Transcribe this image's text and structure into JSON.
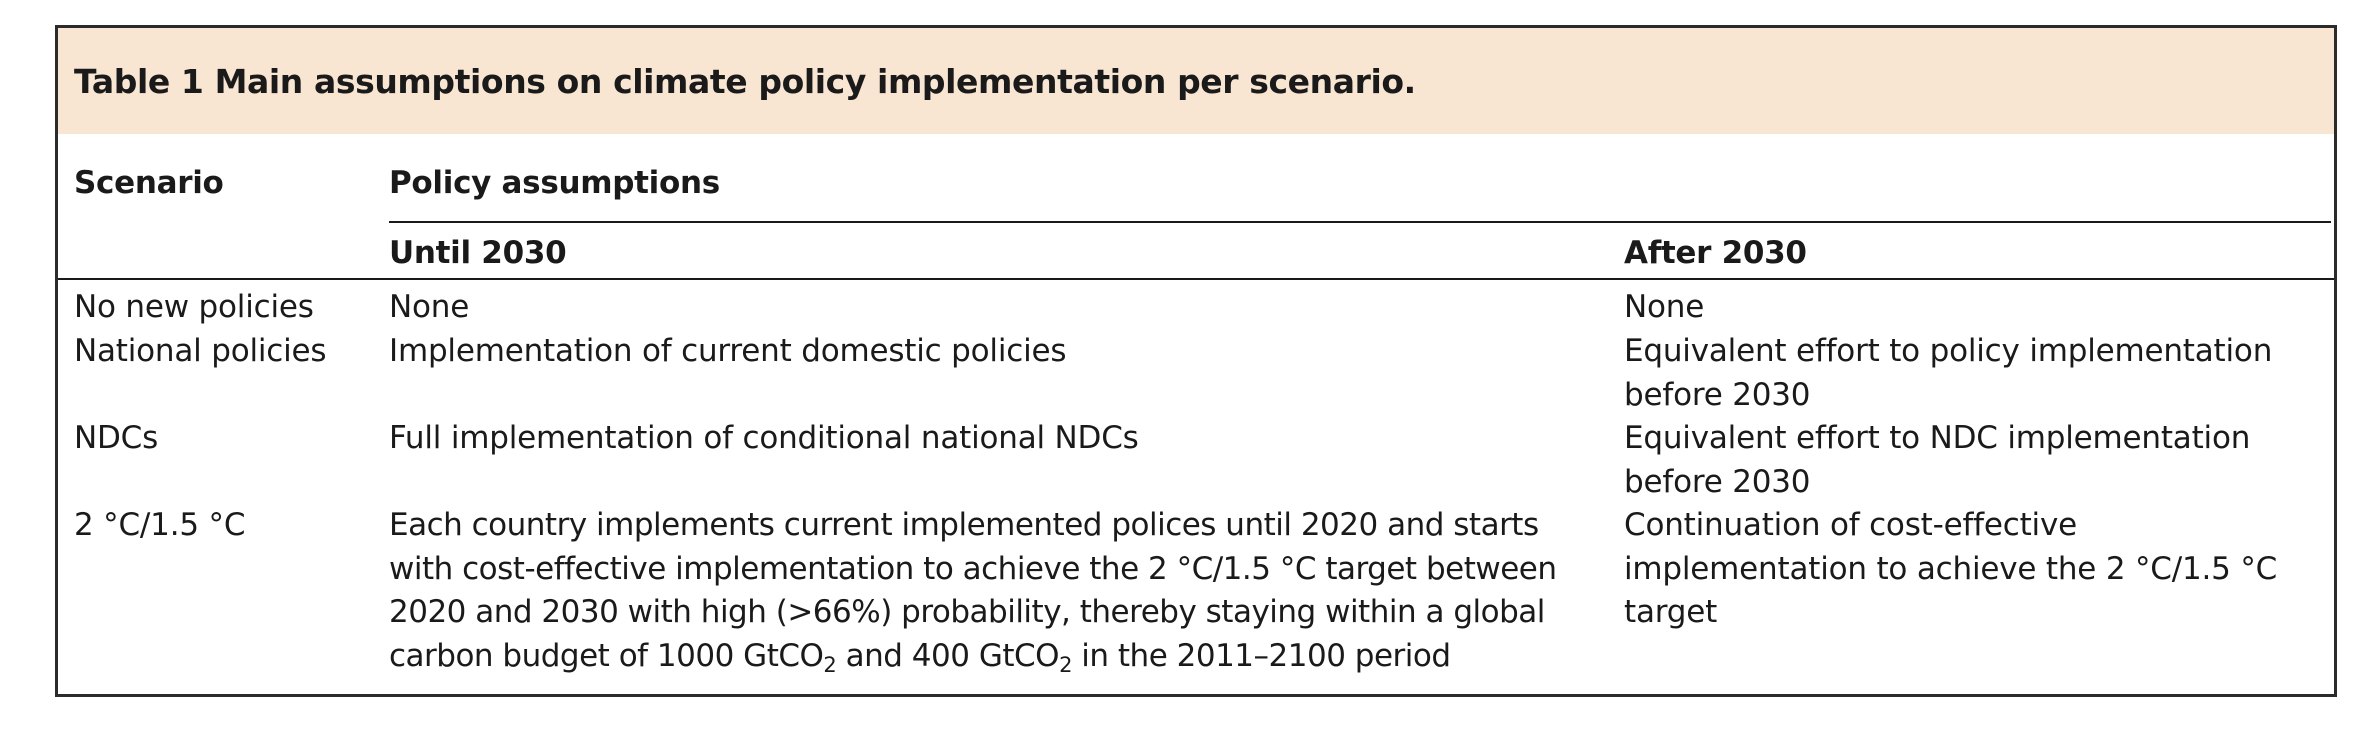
{
  "table": {
    "caption": "Table 1 Main assumptions on climate policy implementation per scenario.",
    "headers": {
      "scenario": "Scenario",
      "policy_assumptions": "Policy assumptions",
      "until_2030": "Until 2030",
      "after_2030": "After 2030"
    },
    "rows": [
      {
        "scenario": "No new policies",
        "until_2030": "None",
        "after_2030": "None"
      },
      {
        "scenario": "National policies",
        "until_2030": "Implementation of current domestic policies",
        "after_2030": "Equivalent effort to policy implementation before 2030"
      },
      {
        "scenario": "NDCs",
        "until_2030": "Full implementation of conditional national NDCs",
        "after_2030": "Equivalent effort to NDC implementation before 2030"
      },
      {
        "scenario": "2 °C/1.5 °C",
        "until_2030_main": "Each country implements current implemented polices until 2020 and starts with cost-effective implementation to achieve the 2 °C/1.5 °C target between 2020 and 2030 with high (>66%) probability, thereby staying within a global carbon budget of 1000 GtCO",
        "until_2030_sub_1": "2",
        "until_2030_mid": " and 400 GtCO",
        "until_2030_sub_2": "2",
        "until_2030_end": " in the 2011–2100 period",
        "after_2030": "Continuation of cost-effective implementation to achieve the 2 °C/1.5 °C target"
      }
    ]
  }
}
